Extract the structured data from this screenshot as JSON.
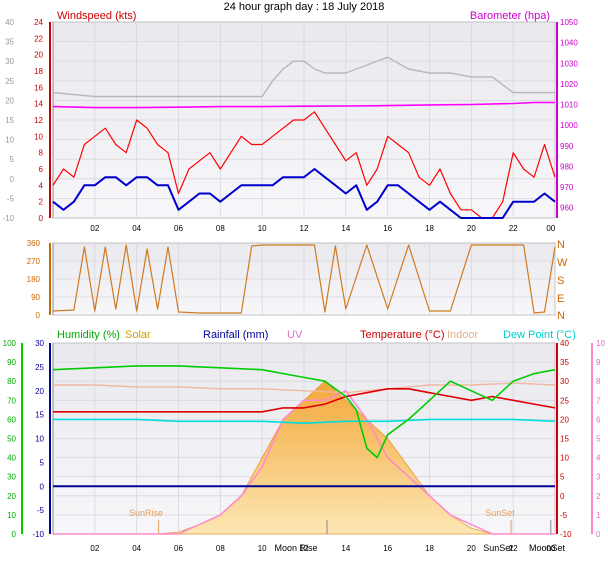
{
  "chart_data": [
    {
      "type": "line",
      "title": "24 hour graph day : 18 July 2018",
      "left_axis_label": "Windspeed (kts)",
      "right_axis_label": "Barometer (hpa)",
      "x_ticks": [
        "02",
        "04",
        "06",
        "08",
        "10",
        "12",
        "14",
        "16",
        "18",
        "20",
        "22",
        "00"
      ],
      "x_hours": [
        0,
        24
      ],
      "y_left_outer_ticks": [
        40,
        35,
        30,
        25,
        20,
        15,
        10,
        5,
        0,
        -5,
        -10
      ],
      "y_left_outer_range": [
        -10,
        40
      ],
      "y_left_inner_ticks": [
        24,
        22,
        20,
        18,
        16,
        14,
        12,
        10,
        8,
        6,
        4,
        2,
        0
      ],
      "y_left_inner_range": [
        0,
        24
      ],
      "y_right_ticks": [
        1050,
        1040,
        1030,
        1020,
        1010,
        1000,
        990,
        980,
        970,
        960
      ],
      "y_right_range": [
        955,
        1050
      ],
      "colors": {
        "gust": "#ff0000",
        "wind": "#0000cc",
        "barometer": "#ff00ff",
        "grey_trace": "#b8b8b8"
      },
      "series": [
        {
          "name": "Barometer (hpa)",
          "unit_axis": "right",
          "x": [
            0,
            2,
            4,
            6,
            8,
            10,
            12,
            14,
            16,
            18,
            20,
            22,
            23,
            24
          ],
          "values": [
            1009,
            1008.5,
            1008.5,
            1008.7,
            1009,
            1009,
            1009.2,
            1009.3,
            1009.5,
            1009.8,
            1010,
            1010.5,
            1011,
            1011
          ]
        },
        {
          "name": "Windspeed (kts) gust",
          "unit_axis": "left_inner",
          "x": [
            0,
            0.5,
            1,
            1.5,
            2,
            2.5,
            3,
            3.5,
            4,
            4.5,
            5,
            5.5,
            6,
            6.5,
            7,
            7.5,
            8,
            8.5,
            9,
            9.5,
            10,
            10.5,
            11,
            11.5,
            12,
            12.5,
            13,
            13.5,
            14,
            14.5,
            15,
            15.5,
            16,
            16.5,
            17,
            17.5,
            18,
            18.5,
            19,
            19.5,
            20,
            20.5,
            21,
            21.5,
            22,
            22.5,
            23,
            23.5,
            24
          ],
          "values": [
            4,
            6,
            5,
            9,
            10,
            11,
            9,
            8,
            12,
            11,
            9,
            8,
            3,
            6,
            7,
            8,
            6,
            8,
            10,
            9,
            9,
            10,
            11,
            12,
            12,
            13,
            11,
            9,
            7,
            8,
            4,
            6,
            10,
            9,
            8,
            5,
            4,
            6,
            3,
            1,
            1,
            0,
            0,
            2,
            8,
            6,
            5,
            9,
            5
          ]
        },
        {
          "name": "Windspeed (kts) average",
          "unit_axis": "left_inner",
          "x": [
            0,
            0.5,
            1,
            1.5,
            2,
            2.5,
            3,
            3.5,
            4,
            4.5,
            5,
            5.5,
            6,
            6.5,
            7,
            7.5,
            8,
            8.5,
            9,
            9.5,
            10,
            10.5,
            11,
            11.5,
            12,
            12.5,
            13,
            13.5,
            14,
            14.5,
            15,
            15.5,
            16,
            16.5,
            17,
            17.5,
            18,
            18.5,
            19,
            19.5,
            20,
            20.5,
            21,
            21.5,
            22,
            22.5,
            23,
            23.5,
            24
          ],
          "values": [
            2,
            1,
            2,
            4,
            4,
            5,
            5,
            4,
            5,
            5,
            4,
            4,
            1,
            2,
            3,
            3,
            2,
            3,
            4,
            4,
            4,
            4,
            5,
            5,
            5,
            6,
            5,
            4,
            3,
            4,
            1,
            2,
            4,
            4,
            3,
            2,
            1,
            2,
            1,
            0,
            0,
            0,
            0,
            0,
            2,
            2,
            2,
            3,
            2
          ]
        },
        {
          "name": "grey trace",
          "unit_axis": "left_outer",
          "x": [
            0,
            2,
            3,
            4,
            5,
            6,
            7,
            8,
            9,
            10,
            10.5,
            11,
            11.5,
            12,
            12.5,
            13,
            14,
            15,
            16,
            17,
            18,
            19,
            20,
            21,
            22,
            23,
            24
          ],
          "values": [
            22,
            21,
            21,
            21,
            21,
            21,
            21,
            21,
            21,
            21,
            25,
            28,
            30,
            30,
            28,
            27,
            27,
            29,
            31,
            28,
            27,
            27,
            26,
            26,
            22,
            22,
            22
          ]
        }
      ]
    },
    {
      "type": "scatter",
      "title": "",
      "compass_labels": [
        "N",
        "W",
        "S",
        "E",
        "N"
      ],
      "y_ticks": [
        360,
        270,
        180,
        90,
        0
      ],
      "y_range": [
        0,
        360
      ],
      "color": "#d07a20",
      "series": [
        {
          "name": "Wind direction",
          "x": [
            0,
            1,
            1.5,
            2,
            2.5,
            3,
            3.5,
            4,
            4.5,
            5,
            5.5,
            6,
            7,
            8,
            9,
            9.5,
            10,
            11,
            12,
            12.5,
            13,
            13.5,
            14,
            15,
            16,
            17,
            18,
            19,
            20,
            21,
            22,
            22.5,
            23,
            23.5,
            24
          ],
          "values": [
            20,
            25,
            340,
            20,
            340,
            30,
            350,
            20,
            330,
            30,
            340,
            15,
            10,
            10,
            10,
            345,
            350,
            350,
            350,
            350,
            15,
            345,
            30,
            350,
            30,
            350,
            20,
            20,
            350,
            350,
            350,
            350,
            10,
            15,
            340
          ]
        }
      ]
    },
    {
      "type": "line",
      "title": "",
      "legend": {
        "humidity": "Humidity (%)",
        "solar": "Solar",
        "rainfall": "Rainfall (mm)",
        "uv": "UV",
        "temperature": "Temperature (°C)",
        "indoor": "Indoor",
        "dewpoint": "Dew Point (°C)"
      },
      "markers": {
        "sunrise": "SunRise",
        "sunset": "SunSet",
        "moonrise": "Moon Rise",
        "moonset": "MoonSet"
      },
      "y_humidity_ticks": [
        100,
        90,
        80,
        70,
        60,
        50,
        40,
        30,
        20,
        10,
        0
      ],
      "y_humidity_range": [
        0,
        100
      ],
      "y_rain_ticks": [
        30,
        25,
        20,
        15,
        10,
        5,
        0,
        -5,
        -10
      ],
      "y_rain_range": [
        -10,
        30
      ],
      "y_temp_ticks": [
        40,
        35,
        30,
        25,
        20,
        15,
        10,
        5,
        0,
        -5,
        -10
      ],
      "y_temp_range": [
        -10,
        40
      ],
      "y_uv_ticks": [
        10,
        9,
        8,
        7,
        6,
        5,
        4,
        3,
        2,
        1,
        0
      ],
      "y_uv_range": [
        0,
        10
      ],
      "colors": {
        "humidity": "#00cc00",
        "solar": "#f2a83a",
        "rain": "#000099",
        "uv": "#ff88cc",
        "temperature": "#dd0000",
        "indoor": "#f0b8a0",
        "dewpoint": "#00dddd"
      },
      "series": [
        {
          "name": "Humidity (%)",
          "unit_axis": "humidity",
          "x": [
            0,
            2,
            4,
            6,
            8,
            10,
            11,
            12,
            13,
            14,
            14.5,
            15,
            15.5,
            16,
            17,
            18,
            19,
            20,
            21,
            22,
            23,
            24
          ],
          "values": [
            86,
            87,
            88,
            88,
            87,
            86,
            84,
            82,
            80,
            72,
            65,
            45,
            40,
            52,
            60,
            70,
            80,
            75,
            70,
            80,
            84,
            86
          ]
        },
        {
          "name": "Temperature (°C)",
          "unit_axis": "temp",
          "x": [
            0,
            2,
            4,
            6,
            8,
            10,
            11,
            12,
            13,
            14,
            15,
            16,
            17,
            18,
            19,
            20,
            21,
            22,
            23,
            24
          ],
          "values": [
            22,
            22,
            22,
            22,
            22,
            22,
            23,
            23,
            24,
            26,
            27,
            28,
            28,
            27,
            26,
            25,
            26,
            25,
            24,
            23
          ]
        },
        {
          "name": "Indoor",
          "unit_axis": "temp",
          "x": [
            0,
            2,
            4,
            6,
            8,
            10,
            12,
            14,
            16,
            18,
            20,
            22,
            24
          ],
          "values": [
            29,
            29,
            28.5,
            28.5,
            28,
            28,
            27.5,
            27,
            28,
            29,
            29,
            29.5,
            29
          ]
        },
        {
          "name": "Dew Point (°C)",
          "unit_axis": "temp",
          "x": [
            0,
            2,
            4,
            6,
            8,
            10,
            12,
            14,
            16,
            18,
            20,
            22,
            24
          ],
          "values": [
            20,
            20,
            20,
            19.5,
            19.5,
            19.5,
            19,
            19.5,
            19.5,
            20,
            20,
            20,
            19.5
          ]
        },
        {
          "name": "Solar",
          "unit_axis": "uv",
          "x": [
            0,
            5,
            6,
            7,
            8,
            9,
            10,
            11,
            12,
            13,
            14,
            15,
            16,
            17,
            18,
            19,
            20,
            21,
            22,
            24
          ],
          "values": [
            0,
            0,
            0.1,
            0.5,
            1,
            2,
            4,
            6,
            7,
            8,
            7,
            6,
            5,
            3.5,
            2,
            1,
            0.3,
            0,
            0,
            0
          ]
        },
        {
          "name": "UV",
          "unit_axis": "uv",
          "x": [
            0,
            6,
            7,
            8,
            9,
            10,
            11,
            12,
            13,
            14,
            15,
            16,
            17,
            18,
            19,
            20,
            21,
            22,
            24
          ],
          "values": [
            0,
            0,
            0.5,
            1,
            2,
            3.5,
            6,
            7,
            7,
            7.5,
            6,
            4,
            3,
            2,
            1,
            0.5,
            0,
            0,
            0
          ]
        },
        {
          "name": "Rainfall (mm)",
          "unit_axis": "rain",
          "x": [
            0,
            24
          ],
          "values": [
            0,
            0
          ]
        }
      ]
    }
  ]
}
